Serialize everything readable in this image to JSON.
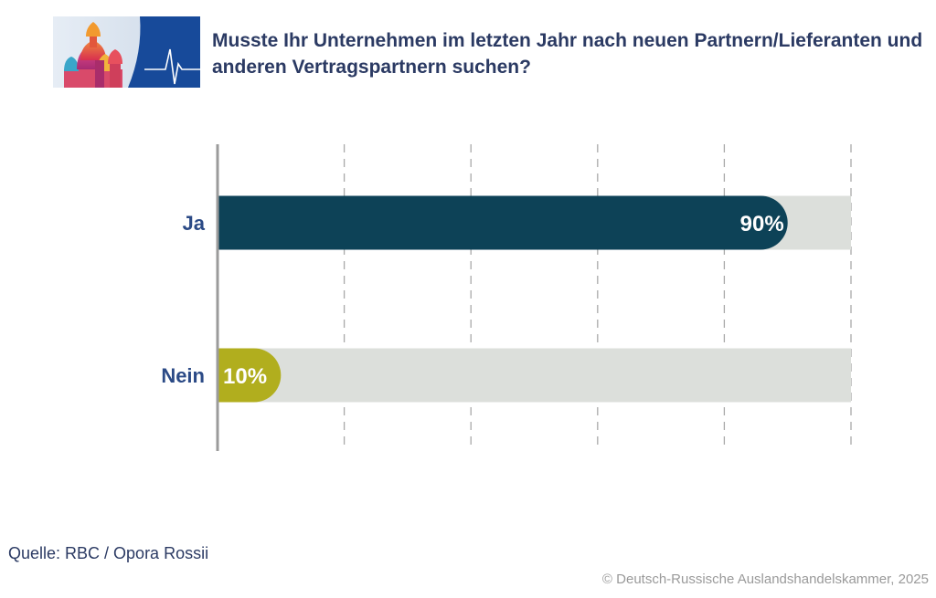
{
  "header": {
    "title": "Musste Ihr Unternehmen im letzten Jahr nach neuen Partnern/Lieferanten und anderen Vertragspartnern suchen?"
  },
  "chart_data": {
    "type": "bar",
    "orientation": "horizontal",
    "title": "Musste Ihr Unternehmen im letzten Jahr nach neuen Partnern/Lieferanten und anderen Vertragspartnern suchen?",
    "categories": [
      "Ja",
      "Nein"
    ],
    "values": [
      90,
      10
    ],
    "value_labels": [
      "90%",
      "10%"
    ],
    "xlim": [
      0,
      100
    ],
    "unit": "%",
    "grid": true,
    "colors": {
      "Ja": "#0d4257",
      "Nein": "#b1ae1e",
      "track": "#dcdfdb",
      "category_label": "#2b4a86",
      "gridline": "#a9a9a9",
      "axis": "#9b9b9b"
    }
  },
  "footer": {
    "source": "Quelle: RBC / Opora Rossii",
    "copyright": "© Deutsch-Russische Auslandshandelskammer, 2025"
  }
}
